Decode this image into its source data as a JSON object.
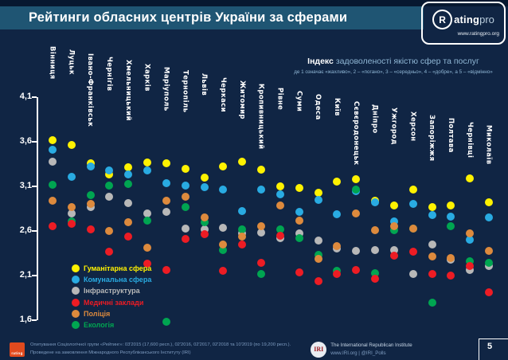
{
  "slide": {
    "title": "Рейтинги обласних центрів України за сферами",
    "brand": {
      "monogram": "R",
      "name_bold": "ating",
      "name_light": "pro",
      "url": "www.ratingpro.org"
    },
    "index_note": {
      "lead": "Індекс",
      "rest": " задоволеності якістю сфер та послуг",
      "scale": "де 1 означає «жахливо», 2 – «погано», 3 – «середньо», 4 – «добре», а 5 – «відмінно»"
    },
    "footer": {
      "rating_logo_text": "rating",
      "source_line1": "Опитування Соціологічної групи «Рейтинг»: 03'2015 (17,600 респ.), 02'2016, 02'2017, 02'2018 та 10'2019 (по 19,200 респ.).",
      "source_line2": "Проведене на замовлення Міжнародного Республіканського Інституту (IRI)",
      "iri_monogram": "IRI",
      "iri_name": "The International Republican Institute",
      "iri_contacts": "www.IRI.org | @IRI_Polls",
      "page_number": "5"
    }
  },
  "colors": {
    "background": "#102544",
    "top_strip": "#071830",
    "title_band": "#1f5573",
    "axis": "#ffffff",
    "note_text": "#8fb6d4",
    "footer_text": "#7e9cc0"
  },
  "chart_data": {
    "type": "scatter",
    "title": "Індекс задоволеності якістю сфер та послуг",
    "subtitle": "де 1 означає «жахливо», 2 – «погано», 3 – «середньо», 4 – «добре», а 5 – «відмінно»",
    "ylim": [
      1.6,
      4.1
    ],
    "yticks": [
      4.1,
      3.6,
      3.1,
      2.6,
      2.1,
      1.6
    ],
    "ytick_labels": [
      "4,1",
      "3,6",
      "3,1",
      "2,6",
      "2,1",
      "1,6"
    ],
    "grid": false,
    "legend_position": "bottom-left",
    "categories": [
      "Вінниця",
      "Луцьк",
      "Івано-Франківськ",
      "Чернігів",
      "Хмельницький",
      "Харків",
      "Маріуполь",
      "Тернопіль",
      "Львів",
      "Черкаси",
      "Житомир",
      "Кропивницький",
      "Рівне",
      "Суми",
      "Одеса",
      "Київ",
      "Сєвєродонецьк",
      "Дніпро",
      "Ужгород",
      "Херсон",
      "Запоріжжя",
      "Полтава",
      "Чернівці",
      "Миколаїв"
    ],
    "series": [
      {
        "name": "Гуманітарна сфера",
        "color": "#fff200",
        "values": [
          3.62,
          3.56,
          3.36,
          3.23,
          3.31,
          3.37,
          3.36,
          3.3,
          3.2,
          3.32,
          3.38,
          3.29,
          3.1,
          3.08,
          3.03,
          3.15,
          3.18,
          2.94,
          2.89,
          3.06,
          2.87,
          2.89,
          3.19,
          2.92
        ]
      },
      {
        "name": "Комунальна сфера",
        "color": "#29abe2",
        "values": [
          3.51,
          3.21,
          3.32,
          3.28,
          3.23,
          3.28,
          3.14,
          3.11,
          3.09,
          3.06,
          2.82,
          3.06,
          3.01,
          2.81,
          2.95,
          2.79,
          3.05,
          2.92,
          2.71,
          2.9,
          2.78,
          2.76,
          2.5,
          2.75
        ]
      },
      {
        "name": "Інфраструктура",
        "color": "#b8b8b8",
        "values": [
          3.38,
          2.8,
          2.87,
          2.98,
          2.91,
          2.8,
          2.81,
          2.63,
          2.62,
          2.64,
          2.57,
          2.58,
          2.52,
          2.57,
          2.49,
          2.4,
          2.38,
          2.39,
          2.39,
          2.12,
          2.45,
          2.28,
          2.16,
          2.21
        ]
      },
      {
        "name": "Медичні заклади",
        "color": "#ed1c24",
        "values": [
          2.65,
          2.68,
          2.62,
          2.37,
          2.54,
          2.23,
          2.16,
          2.51,
          2.56,
          2.15,
          2.45,
          2.24,
          2.55,
          2.14,
          2.04,
          2.12,
          2.16,
          2.06,
          2.32,
          2.37,
          2.12,
          2.1,
          2.21,
          1.91
        ]
      },
      {
        "name": "Поліція",
        "color": "#dd8a3d",
        "values": [
          2.94,
          2.87,
          2.9,
          2.6,
          2.7,
          2.41,
          2.94,
          2.98,
          2.75,
          2.45,
          2.54,
          2.65,
          2.89,
          2.72,
          2.29,
          2.43,
          2.8,
          2.61,
          2.65,
          2.63,
          2.31,
          2.3,
          2.57,
          2.38
        ]
      },
      {
        "name": "Екологія",
        "color": "#00a551",
        "values": [
          3.12,
          2.71,
          3.0,
          3.11,
          3.13,
          2.72,
          1.58,
          2.87,
          2.7,
          2.39,
          2.62,
          2.12,
          2.62,
          2.52,
          2.33,
          2.15,
          3.06,
          2.13,
          2.61,
          2.63,
          1.8,
          2.65,
          2.26,
          2.24
        ]
      }
    ]
  }
}
